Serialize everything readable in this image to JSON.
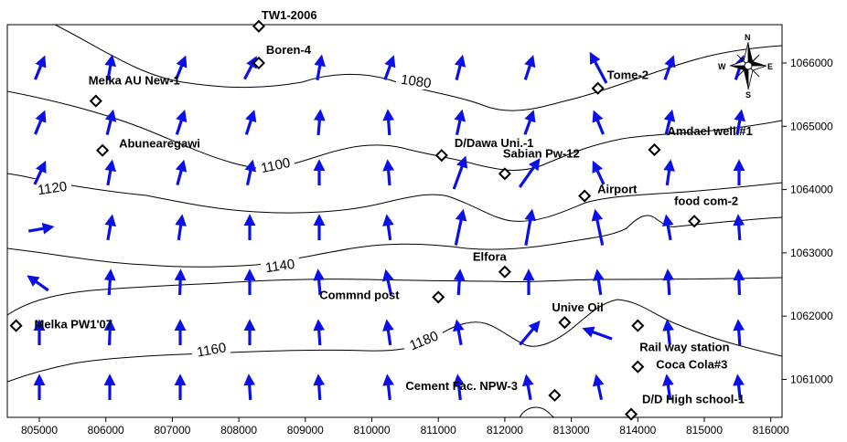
{
  "map": {
    "x_ticks": [
      "805000",
      "806000",
      "807000",
      "808000",
      "809000",
      "810000",
      "811000",
      "812000",
      "813000",
      "814000",
      "815000",
      "816000"
    ],
    "y_ticks": [
      "1066000",
      "1065000",
      "1064000",
      "1063000",
      "1062000",
      "1061000"
    ],
    "contour_labels": [
      "1080",
      "1100",
      "1120",
      "1140",
      "1160",
      "1180"
    ],
    "compass": {
      "n": "N",
      "s": "S",
      "e": "E",
      "w": "W"
    },
    "wells": [
      {
        "label": "TW1-2006",
        "x": 808300,
        "y": 1066580
      },
      {
        "label": "Boren-4",
        "x": 808300,
        "y": 1066000
      },
      {
        "label": "Melka AU New-1",
        "x": 805850,
        "y": 1065400
      },
      {
        "label": "Tome-2",
        "x": 813400,
        "y": 1065600
      },
      {
        "label": "Amdael well #1",
        "x": 814250,
        "y": 1064630
      },
      {
        "label": "Abunearegawi",
        "x": 805950,
        "y": 1064620
      },
      {
        "label": "D/Dawa Uni.-1",
        "x": 811050,
        "y": 1064540
      },
      {
        "label": "Sabian Pw-12",
        "x": 812000,
        "y": 1064250
      },
      {
        "label": "Airport",
        "x": 813200,
        "y": 1063900
      },
      {
        "label": "food com-2",
        "x": 814850,
        "y": 1063500
      },
      {
        "label": "Elfora",
        "x": 812000,
        "y": 1062700
      },
      {
        "label": "Commnd post",
        "x": 811000,
        "y": 1062300
      },
      {
        "label": "Melka PW1'07",
        "x": 804650,
        "y": 1061850
      },
      {
        "label": "Unive Oil",
        "x": 812900,
        "y": 1061900
      },
      {
        "label": "Rail way station",
        "x": 814000,
        "y": 1061850
      },
      {
        "label": "Coca Cola#3",
        "x": 814000,
        "y": 1061200
      },
      {
        "label": "Cement Fac. NPW-3",
        "x": 812750,
        "y": 1060750
      },
      {
        "label": "D/D High school-1",
        "x": 813900,
        "y": 1060450
      }
    ]
  }
}
